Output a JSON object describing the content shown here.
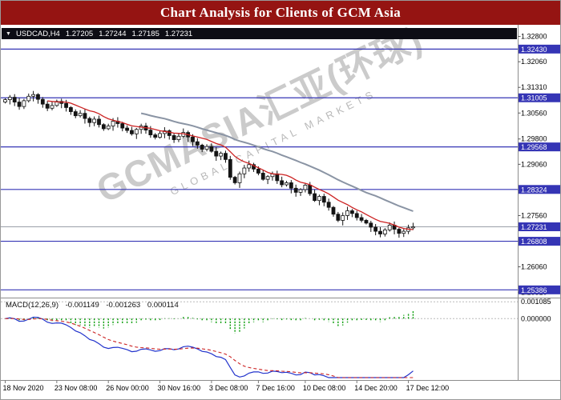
{
  "window": {
    "title": "Chart Analysis for Clients of GCM Asia"
  },
  "colors": {
    "titlebar": "#951412",
    "level_blue": "#3535b5",
    "candle": "#141414",
    "ma_fast": "#cc2222",
    "ma_slow": "#8a94a4",
    "macd_line": "#2233cc",
    "macd_signal": "#cc2222",
    "macd_hist": "#009900",
    "current_price_line": "#9aa0a8"
  },
  "symbol_bar": {
    "collapse_icon": "▼",
    "symbol": "USDCAD,H4",
    "open": "1.27205",
    "high": "1.27244",
    "low": "1.27185",
    "close": "1.27231"
  },
  "watermark": {
    "main": "GCMASIA汇亚(环球)",
    "sub": "GLOBAL CAPITAL MARKETS"
  },
  "price_axis": {
    "max": 1.33,
    "min": 1.2523,
    "ticks": [
      1.328,
      1.3206,
      1.3131,
      1.3056,
      1.298,
      1.2906,
      1.2831,
      1.2756,
      1.2681,
      1.2606,
      1.2531
    ]
  },
  "levels": [
    1.3243,
    1.31005,
    1.29568,
    1.28324,
    1.26808,
    1.25386
  ],
  "current_price": 1.27231,
  "macd_panel": {
    "label": "MACD(12,26,9)",
    "value_main": "-0.001149",
    "value_signal": "-0.001263",
    "value_hist": "0.000114",
    "axis_labels": [
      0.001085,
      0
    ],
    "range": {
      "max": 0.0012,
      "min": -0.0038
    }
  },
  "x_axis": {
    "labels": [
      {
        "text": "18 Nov 2020",
        "bar": 0
      },
      {
        "text": "23 Nov 08:00",
        "bar": 11
      },
      {
        "text": "26 Nov 00:00",
        "bar": 22
      },
      {
        "text": "30 Nov 16:00",
        "bar": 33
      },
      {
        "text": "3 Dec 08:00",
        "bar": 44
      },
      {
        "text": "7 Dec 16:00",
        "bar": 54
      },
      {
        "text": "10 Dec 08:00",
        "bar": 64
      },
      {
        "text": "14 Dec 20:00",
        "bar": 75
      },
      {
        "text": "17 Dec 12:00",
        "bar": 86
      }
    ]
  },
  "chart_data": {
    "type": "candlestick",
    "title": "USDCAD H4",
    "symbol": "USDCAD",
    "timeframe": "H4",
    "ylim": [
      1.2523,
      1.33
    ],
    "ma_fast_period": 10,
    "ma_slow_period": 30,
    "indicator": "MACD(12,26,9)",
    "support_resistance": [
      1.3243,
      1.31005,
      1.29568,
      1.28324,
      1.26808,
      1.25386
    ],
    "closes": [
      1.3095,
      1.3102,
      1.3088,
      1.3075,
      1.3092,
      1.3105,
      1.311,
      1.3096,
      1.3082,
      1.307,
      1.3078,
      1.309,
      1.3084,
      1.3072,
      1.306,
      1.3048,
      1.3055,
      1.304,
      1.3028,
      1.3038,
      1.3022,
      1.301,
      1.3018,
      1.3032,
      1.3025,
      1.3012,
      1.3005,
      1.2995,
      1.3008,
      1.3018,
      1.3006,
      1.2992,
      1.2985,
      1.2996,
      1.3004,
      1.299,
      1.2978,
      1.2988,
      1.2999,
      1.2986,
      1.2972,
      1.2962,
      1.295,
      1.2958,
      1.2944,
      1.293,
      1.2938,
      1.292,
      1.2868,
      1.2852,
      1.2878,
      1.2895,
      1.2905,
      1.2892,
      1.288,
      1.2862,
      1.287,
      1.2878,
      1.2858,
      1.2846,
      1.2852,
      1.2836,
      1.2824,
      1.2832,
      1.2845,
      1.282,
      1.28,
      1.2812,
      1.2795,
      1.278,
      1.276,
      1.2742,
      1.2756,
      1.277,
      1.2762,
      1.275,
      1.2742,
      1.2734,
      1.2722,
      1.271,
      1.2702,
      1.2714,
      1.2728,
      1.2716,
      1.2704,
      1.271,
      1.272,
      1.27231
    ]
  }
}
